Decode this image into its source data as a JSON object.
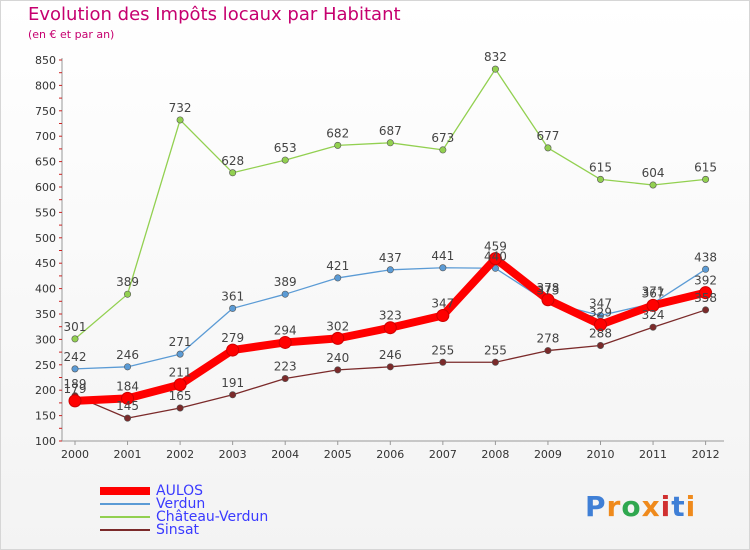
{
  "title": "Evolution des Impôts locaux par Habitant",
  "subtitle": "(en € et par an)",
  "logo": {
    "letters": [
      "P",
      "r",
      "o",
      "x",
      "i",
      "t",
      "i"
    ],
    "colors": [
      "#3f7fd6",
      "#ef8a1c",
      "#2fa84f",
      "#ef8a1c",
      "#d03030",
      "#3f7fd6",
      "#ef8a1c"
    ]
  },
  "chart_data": {
    "type": "line",
    "title": "Evolution des Impôts locaux par Habitant",
    "subtitle": "(en € et par an)",
    "xlabel": "",
    "ylabel": "",
    "x": [
      "2000",
      "2001",
      "2002",
      "2003",
      "2004",
      "2005",
      "2006",
      "2007",
      "2008",
      "2009",
      "2010",
      "2011",
      "2012"
    ],
    "ylim": [
      100,
      850
    ],
    "yticks": [
      100,
      150,
      200,
      250,
      300,
      350,
      400,
      450,
      500,
      550,
      600,
      650,
      700,
      750,
      800,
      850
    ],
    "grid": false,
    "legend_position": "bottom-left",
    "series": [
      {
        "name": "AULOS",
        "color": "#ff0000",
        "values": [
          179,
          184,
          211,
          279,
          294,
          302,
          323,
          347,
          459,
          378,
          329,
          367,
          392
        ]
      },
      {
        "name": "Verdun",
        "color": "#5b9bd5",
        "values": [
          242,
          246,
          271,
          361,
          389,
          421,
          437,
          441,
          440,
          373,
          347,
          371,
          438
        ]
      },
      {
        "name": "Château-Verdun",
        "color": "#92d050",
        "values": [
          301,
          389,
          732,
          628,
          653,
          682,
          687,
          673,
          832,
          677,
          615,
          604,
          615
        ]
      },
      {
        "name": "Sinsat",
        "color": "#7b2a2a",
        "values": [
          189,
          145,
          165,
          191,
          223,
          240,
          246,
          255,
          255,
          278,
          288,
          324,
          358
        ]
      }
    ]
  }
}
